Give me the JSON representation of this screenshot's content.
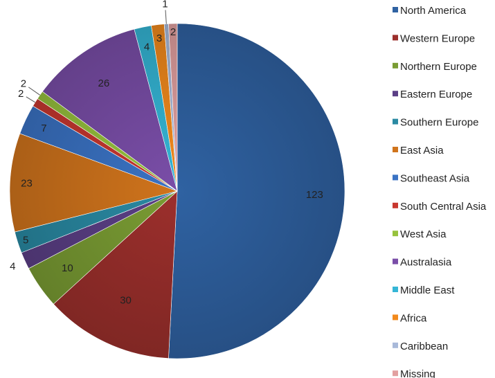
{
  "chart_data": {
    "type": "pie",
    "title": "",
    "legend_position": "right",
    "slices": [
      {
        "name": "North America",
        "value": 123,
        "label": "123",
        "color": "#2f62a2"
      },
      {
        "name": "Western Europe",
        "value": 30,
        "label": "30",
        "color": "#9c2f2c"
      },
      {
        "name": "Northern Europe",
        "value": 10,
        "label": "10",
        "color": "#7a9c33"
      },
      {
        "name": "Eastern Europe",
        "value": 4,
        "label": "4",
        "color": "#5b3f86"
      },
      {
        "name": "Southern Europe",
        "value": 5,
        "label": "5",
        "color": "#2a8aa3"
      },
      {
        "name": "East Asia",
        "value": 23,
        "label": "23",
        "color": "#d0741c"
      },
      {
        "name": "Southeast Asia",
        "value": 7,
        "label": "7",
        "color": "#3a73c4"
      },
      {
        "name": "South Central Asia",
        "value": 2,
        "label": "2",
        "color": "#c8372f"
      },
      {
        "name": "West Asia",
        "value": 2,
        "label": "2",
        "color": "#97c23d"
      },
      {
        "name": "Australasia",
        "value": 26,
        "label": "26",
        "color": "#7a4ea8"
      },
      {
        "name": "Middle East",
        "value": 4,
        "label": "4",
        "color": "#35b6d6"
      },
      {
        "name": "Africa",
        "value": 3,
        "label": "3",
        "color": "#f28a1d"
      },
      {
        "name": "Caribbean",
        "value": 1,
        "label": "1",
        "color": "#a8b9d9"
      },
      {
        "name": "Missing",
        "value": 2,
        "label": "2",
        "color": "#e2a0a0"
      }
    ]
  }
}
